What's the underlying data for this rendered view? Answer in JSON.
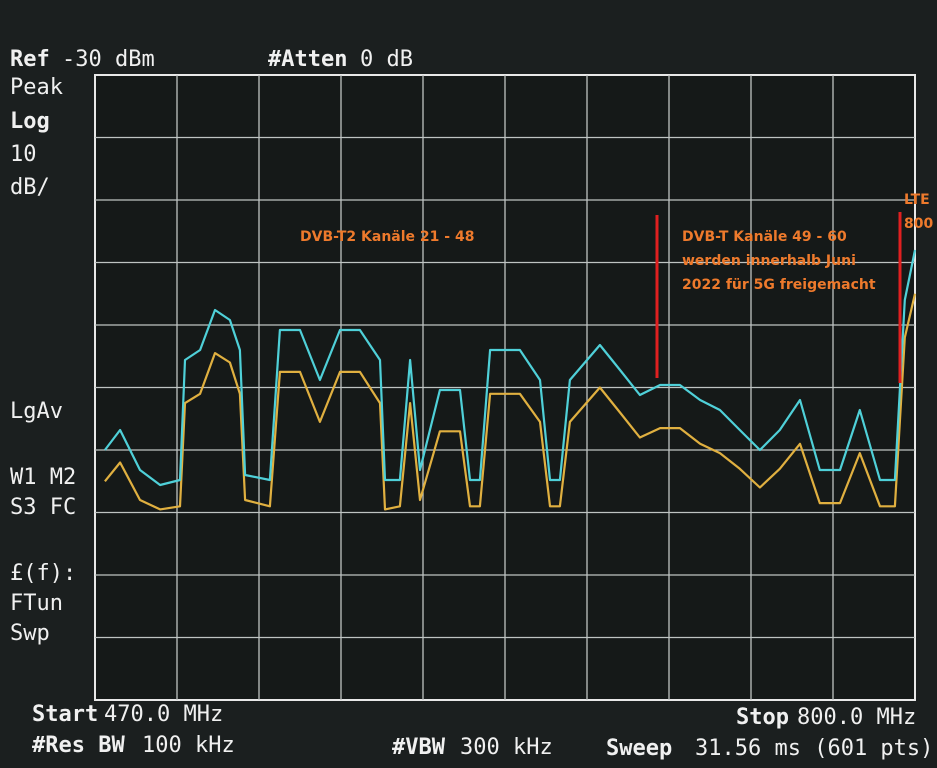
{
  "chart_data": {
    "type": "line",
    "header": {
      "ref_label": "Ref",
      "ref_value": "-30 dBm",
      "atten_label": "#Atten",
      "atten_value": "0 dB"
    },
    "side_labels": [
      "Peak",
      "Log",
      "10",
      "dB/",
      "LgAv",
      "W1  M2",
      "S3  FC",
      "£(f):",
      "FTun",
      "Swp"
    ],
    "footer": {
      "start_label": "Start",
      "start_value": "470.0 MHz",
      "stop_label": "Stop",
      "stop_value": "800.0 MHz",
      "rbw_label": "#Res BW",
      "rbw_value": "100 kHz",
      "vbw_label": "#VBW",
      "vbw_value": "300 kHz",
      "sweep_label": "Sweep",
      "sweep_value": "31.56 ms (601 pts)"
    },
    "annotations": [
      "DVB-T2 Kanäle 21 - 48",
      "DVB-T Kanäle 49 - 60",
      "werden innerhalb Juni",
      "2022 für 5G freigemacht",
      "LTE",
      "800"
    ],
    "x": [
      474.0,
      480.1,
      488.1,
      496.2,
      504.2,
      506.2,
      512.3,
      518.3,
      524.3,
      528.3,
      530.4,
      540.4,
      544.4,
      552.5,
      560.5,
      568.6,
      576.6,
      584.7,
      586.7,
      592.7,
      596.8,
      600.8,
      608.8,
      616.9,
      620.9,
      624.9,
      629.0,
      641.0,
      649.1,
      653.1,
      657.1,
      661.1,
      673.2,
      681.3,
      689.3,
      697.4,
      705.4,
      713.5,
      721.5,
      729.5,
      737.6,
      745.6,
      753.7,
      761.7,
      769.8,
      777.8,
      785.9,
      791.9,
      795.9,
      800.0
    ],
    "series": [
      {
        "name": "Peak",
        "color": "#4fd0d8",
        "values": [
          -90.0,
          -86.8,
          -93.2,
          -95.6,
          -94.8,
          -75.6,
          -74.0,
          -67.6,
          -69.2,
          -74.0,
          -94.0,
          -94.8,
          -70.8,
          -70.8,
          -78.8,
          -70.8,
          -70.8,
          -75.6,
          -94.8,
          -94.8,
          -75.6,
          -93.2,
          -80.4,
          -80.4,
          -94.8,
          -94.8,
          -74.0,
          -74.0,
          -78.8,
          -94.8,
          -94.8,
          -78.8,
          -73.2,
          -77.2,
          -81.2,
          -79.6,
          -79.6,
          -82.0,
          -83.6,
          -86.8,
          -90.0,
          -86.8,
          -82.0,
          -93.2,
          -93.2,
          -83.6,
          -94.8,
          -94.8,
          -66.0,
          -58.0
        ]
      },
      {
        "name": "LgAv",
        "color": "#e0b040",
        "values": [
          -95.0,
          -92.0,
          -98.0,
          -99.5,
          -99.0,
          -82.5,
          -81.0,
          -74.5,
          -76.0,
          -81.0,
          -98.0,
          -99.0,
          -77.5,
          -77.5,
          -85.5,
          -77.5,
          -77.5,
          -82.5,
          -99.5,
          -99.0,
          -82.5,
          -98.0,
          -87.0,
          -87.0,
          -99.0,
          -99.0,
          -81.0,
          -81.0,
          -85.5,
          -99.0,
          -99.0,
          -85.5,
          -80.0,
          -84.0,
          -88.0,
          -86.5,
          -86.5,
          -89.0,
          -90.5,
          -93.0,
          -96.0,
          -93.0,
          -89.0,
          -98.5,
          -98.5,
          -90.5,
          -99.0,
          -99.0,
          -72.0,
          -65.0
        ]
      }
    ],
    "xlim": [
      470,
      800
    ],
    "ylim": [
      -130,
      -30
    ]
  }
}
